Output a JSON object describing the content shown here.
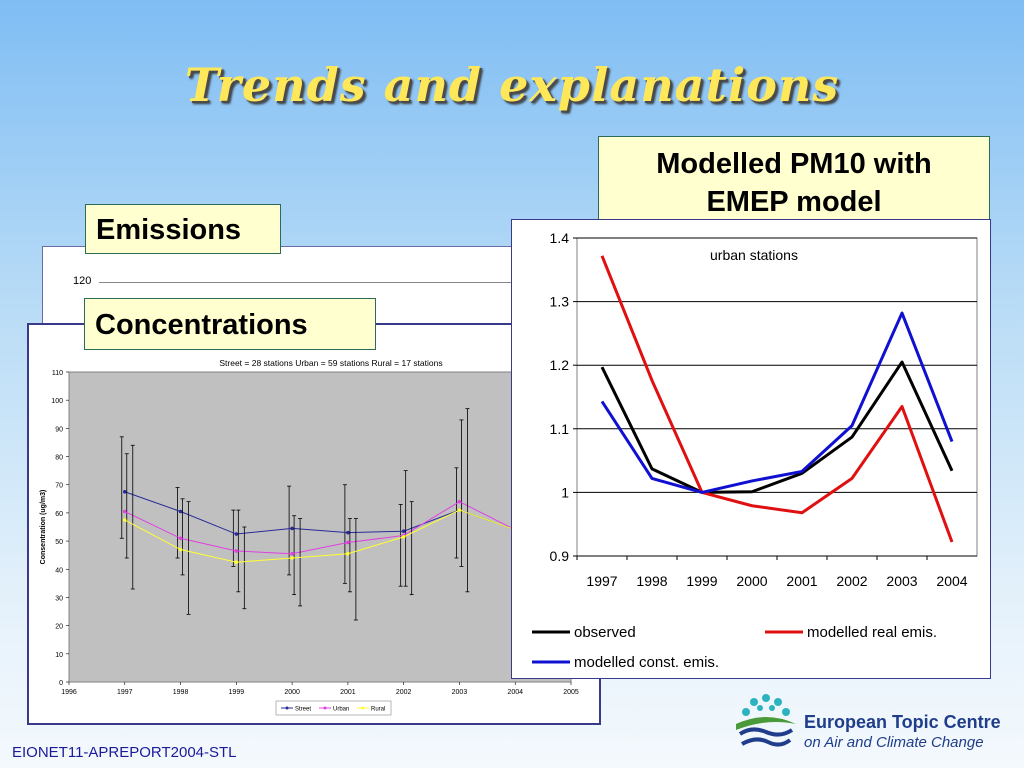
{
  "slide": {
    "title": "Trends and explanations",
    "footer": "EIONET11-APREPORT2004-STL",
    "emissions_label": "Emissions",
    "concentrations_label": "Concentrations",
    "model_label_line1": "Modelled PM10 with",
    "model_label_line2": "EMEP model",
    "emissions_chart_tick": "120"
  },
  "logo": {
    "line1": "European Topic Centre",
    "line2": "on Air and Climate Change"
  },
  "chart_data": [
    {
      "type": "line",
      "id": "concentrations",
      "subtitle": "Street = 28 stations      Urban = 59 stations      Rural = 17 stations",
      "ylabel": "Consentration  (ug/m3)",
      "x": [
        1996,
        1997,
        1998,
        1999,
        2000,
        2001,
        2002,
        2003,
        2004,
        2005
      ],
      "x_tick_labels": [
        "1996",
        "1997",
        "1998",
        "1999",
        "2000",
        "2001",
        "2002",
        "2003",
        "2004",
        "2005"
      ],
      "ylim": [
        0,
        110
      ],
      "y_ticks": [
        0,
        10,
        20,
        30,
        40,
        50,
        60,
        70,
        80,
        90,
        100,
        110
      ],
      "grid": false,
      "legend_position": "bottom",
      "series": [
        {
          "name": "Street",
          "color": "#2a2a9a",
          "x": [
            1997,
            1998,
            1999,
            2000,
            2001,
            2002,
            2003,
            2004
          ],
          "values": [
            67.5,
            60.5,
            52.5,
            54.5,
            53,
            53.5,
            61,
            54
          ],
          "err_low": [
            51,
            44,
            41,
            38,
            35,
            34,
            44,
            null
          ],
          "err_high": [
            87,
            69,
            61,
            69.5,
            70,
            63,
            76,
            null
          ]
        },
        {
          "name": "Urban",
          "color": "#e040e0",
          "x": [
            1997,
            1998,
            1999,
            2000,
            2001,
            2002,
            2003,
            2004
          ],
          "values": [
            60.5,
            51,
            46.5,
            45.5,
            49.5,
            52,
            64,
            54
          ],
          "err_low": [
            44,
            38,
            32,
            31,
            32,
            34,
            41,
            null
          ],
          "err_high": [
            81,
            65,
            61,
            59,
            58,
            75,
            93,
            null
          ]
        },
        {
          "name": "Rural",
          "color": "#ffff33",
          "x": [
            1997,
            1998,
            1999,
            2000,
            2001,
            2002,
            2003,
            2004
          ],
          "values": [
            57.5,
            47,
            42.5,
            44,
            45.5,
            51.5,
            61,
            54
          ],
          "err_low": [
            33,
            24,
            26,
            27,
            22,
            31,
            32,
            null
          ],
          "err_high": [
            84,
            64,
            55,
            58,
            58,
            64,
            97,
            null
          ]
        }
      ]
    },
    {
      "type": "line",
      "id": "modelled",
      "title": "urban stations",
      "categories": [
        "1997",
        "1998",
        "1999",
        "2000",
        "2001",
        "2002",
        "2003",
        "2004"
      ],
      "ylim": [
        0.9,
        1.4
      ],
      "y_ticks": [
        0.9,
        1.0,
        1.1,
        1.2,
        1.3,
        1.4
      ],
      "y_tick_labels": [
        "0.9",
        "1",
        "1.1",
        "1.2",
        "1.3",
        "1.4"
      ],
      "grid": true,
      "legend_position": "bottom",
      "series": [
        {
          "name": "observed",
          "color": "#000000",
          "values": [
            1.197,
            1.037,
            1.0,
            1.001,
            1.03,
            1.087,
            1.205,
            1.034
          ]
        },
        {
          "name": "modelled real emis.",
          "color": "#e01010",
          "values": [
            1.372,
            1.176,
            1.0,
            0.979,
            0.968,
            1.022,
            1.135,
            0.922
          ]
        },
        {
          "name": "modelled const. emis.",
          "color": "#1010d0",
          "values": [
            1.143,
            1.022,
            1.0,
            1.018,
            1.033,
            1.105,
            1.282,
            1.08
          ]
        }
      ]
    }
  ]
}
